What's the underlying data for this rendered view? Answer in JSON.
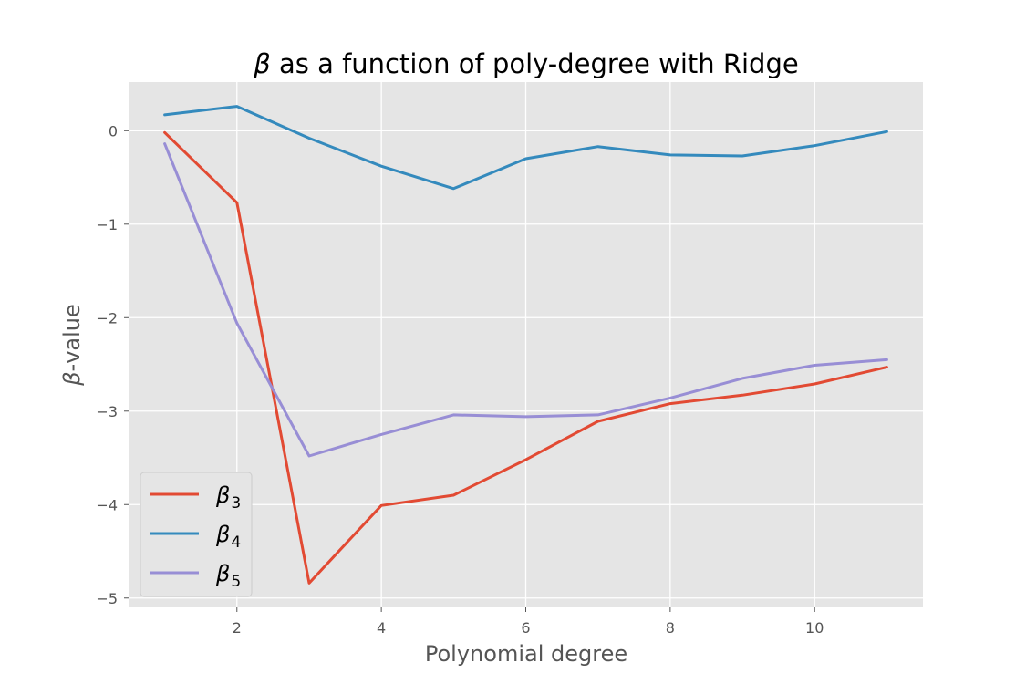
{
  "chart_data": {
    "type": "line",
    "title": {
      "symbol": "β",
      "text": " as a function of poly-degree with Ridge"
    },
    "xlabel": "Polynomial degree",
    "ylabel": {
      "symbol": "β",
      "text": "-value"
    },
    "xlim": [
      0.5,
      11.5
    ],
    "ylim": [
      -5.1,
      0.52
    ],
    "xticks": [
      2,
      4,
      6,
      8,
      10
    ],
    "yticks": [
      0,
      -1,
      -2,
      -3,
      -4,
      -5
    ],
    "ytick_labels": [
      "0",
      "−1",
      "−2",
      "−3",
      "−4",
      "−5"
    ],
    "grid": true,
    "legend_position": "lower-left",
    "x": [
      1,
      2,
      3,
      4,
      5,
      6,
      7,
      8,
      9,
      10,
      11
    ],
    "series": [
      {
        "name": {
          "symbol": "β",
          "sub": "3"
        },
        "color": "#E24A33",
        "values": [
          -0.02,
          -0.77,
          -4.84,
          -4.01,
          -3.9,
          -3.52,
          -3.11,
          -2.92,
          -2.83,
          -2.71,
          -2.53
        ]
      },
      {
        "name": {
          "symbol": "β",
          "sub": "4"
        },
        "color": "#348ABD",
        "values": [
          0.17,
          0.26,
          -0.08,
          -0.38,
          -0.62,
          -0.3,
          -0.17,
          -0.26,
          -0.27,
          -0.16,
          -0.01
        ]
      },
      {
        "name": {
          "symbol": "β",
          "sub": "5"
        },
        "color": "#988ED5",
        "values": [
          -0.14,
          -2.06,
          -3.48,
          -3.25,
          -3.04,
          -3.06,
          -3.04,
          -2.86,
          -2.65,
          -2.51,
          -2.45
        ]
      }
    ]
  }
}
